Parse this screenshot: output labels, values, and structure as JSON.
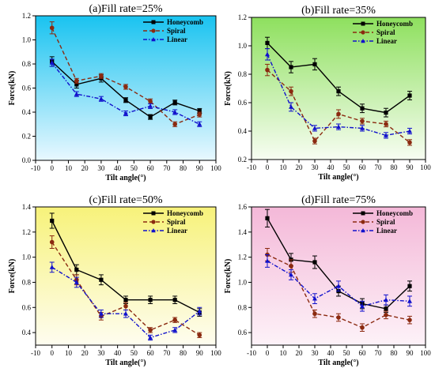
{
  "chart_data": [
    {
      "type": "line",
      "title": "(a)Fill rate=25%",
      "xlabel": "Tilt angle(°)",
      "ylabel": "Force(kN)",
      "xlim": [
        -10,
        100
      ],
      "ylim": [
        0.0,
        1.2
      ],
      "xticks": [
        -10,
        0,
        10,
        20,
        30,
        40,
        50,
        60,
        70,
        80,
        90,
        100
      ],
      "yticks": [
        "0.0",
        "0.2",
        "0.4",
        "0.6",
        "0.8",
        "1.0",
        "1.2"
      ],
      "background": [
        "#19c3f0",
        "#e8f8ff"
      ],
      "legend_position": "top-right",
      "x": [
        0,
        15,
        30,
        45,
        60,
        75,
        90
      ],
      "series": [
        {
          "name": "Honeycomb",
          "color": "#000000",
          "marker": "square",
          "dash": "solid",
          "values": [
            0.82,
            0.63,
            0.68,
            0.5,
            0.36,
            0.48,
            0.41
          ],
          "errors": [
            0.04,
            0.03,
            0.03,
            0.02,
            0.02,
            0.02,
            0.02
          ]
        },
        {
          "name": "Spiral",
          "color": "#8b2a10",
          "marker": "circle",
          "dash": "dash",
          "values": [
            1.1,
            0.66,
            0.7,
            0.61,
            0.49,
            0.3,
            0.38
          ],
          "errors": [
            0.05,
            0.02,
            0.02,
            0.02,
            0.02,
            0.02,
            0.02
          ]
        },
        {
          "name": "Linear",
          "color": "#1111cc",
          "marker": "triangle",
          "dash": "dashdot",
          "values": [
            0.81,
            0.55,
            0.51,
            0.39,
            0.45,
            0.4,
            0.3
          ],
          "errors": [
            0.03,
            0.02,
            0.02,
            0.02,
            0.02,
            0.02,
            0.02
          ]
        }
      ]
    },
    {
      "type": "line",
      "title": "(b)Fill rate=35%",
      "xlabel": "Tilt angle(°)",
      "ylabel": "Force(kN)",
      "xlim": [
        -10,
        100
      ],
      "ylim": [
        0.2,
        1.2
      ],
      "xticks": [
        -10,
        0,
        10,
        20,
        30,
        40,
        50,
        60,
        70,
        80,
        90,
        100
      ],
      "yticks": [
        "0.2",
        "0.4",
        "0.6",
        "0.8",
        "1.0",
        "1.2"
      ],
      "background": [
        "#8ee05e",
        "#f7fdf2"
      ],
      "legend_position": "top-right",
      "x": [
        0,
        15,
        30,
        45,
        60,
        75,
        90
      ],
      "series": [
        {
          "name": "Honeycomb",
          "color": "#000000",
          "marker": "square",
          "dash": "solid",
          "values": [
            1.02,
            0.85,
            0.87,
            0.68,
            0.56,
            0.53,
            0.65
          ],
          "errors": [
            0.04,
            0.04,
            0.04,
            0.03,
            0.03,
            0.03,
            0.03
          ]
        },
        {
          "name": "Spiral",
          "color": "#8b2a10",
          "marker": "circle",
          "dash": "dash",
          "values": [
            0.83,
            0.68,
            0.33,
            0.52,
            0.47,
            0.45,
            0.32
          ],
          "errors": [
            0.04,
            0.03,
            0.02,
            0.03,
            0.02,
            0.02,
            0.02
          ]
        },
        {
          "name": "Linear",
          "color": "#1111cc",
          "marker": "triangle",
          "dash": "dashdot",
          "values": [
            0.94,
            0.57,
            0.42,
            0.43,
            0.42,
            0.37,
            0.4
          ],
          "errors": [
            0.04,
            0.03,
            0.02,
            0.02,
            0.02,
            0.02,
            0.02
          ]
        }
      ]
    },
    {
      "type": "line",
      "title": "(c)Fill rate=50%",
      "xlabel": "Tilt angle(°)",
      "ylabel": "Force(kN)",
      "xlim": [
        -10,
        100
      ],
      "ylim": [
        0.3,
        1.4
      ],
      "xticks": [
        -10,
        0,
        10,
        20,
        30,
        40,
        50,
        60,
        70,
        80,
        90,
        100
      ],
      "yticks": [
        "0.4",
        "0.6",
        "0.8",
        "1.0",
        "1.2",
        "1.4"
      ],
      "background": [
        "#f7f27a",
        "#fefdf0"
      ],
      "legend_position": "top-right",
      "x": [
        0,
        15,
        30,
        45,
        60,
        75,
        90
      ],
      "series": [
        {
          "name": "Honeycomb",
          "color": "#000000",
          "marker": "square",
          "dash": "solid",
          "values": [
            1.29,
            0.9,
            0.82,
            0.66,
            0.66,
            0.66,
            0.56
          ],
          "errors": [
            0.06,
            0.04,
            0.04,
            0.03,
            0.03,
            0.03,
            0.03
          ]
        },
        {
          "name": "Spiral",
          "color": "#8b2a10",
          "marker": "circle",
          "dash": "dash",
          "values": [
            1.12,
            0.82,
            0.53,
            0.61,
            0.42,
            0.5,
            0.38
          ],
          "errors": [
            0.05,
            0.04,
            0.03,
            0.03,
            0.02,
            0.02,
            0.02
          ]
        },
        {
          "name": "Linear",
          "color": "#1111cc",
          "marker": "triangle",
          "dash": "dashdot",
          "values": [
            0.92,
            0.8,
            0.55,
            0.55,
            0.36,
            0.42,
            0.57
          ],
          "errors": [
            0.04,
            0.04,
            0.03,
            0.03,
            0.02,
            0.02,
            0.03
          ]
        }
      ]
    },
    {
      "type": "line",
      "title": "(d)Fill rate=75%",
      "xlabel": "Tilt angle(°)",
      "ylabel": "Force(kN)",
      "xlim": [
        -10,
        100
      ],
      "ylim": [
        0.5,
        1.6
      ],
      "xticks": [
        -10,
        0,
        10,
        20,
        30,
        40,
        50,
        60,
        70,
        80,
        90,
        100
      ],
      "yticks": [
        "0.6",
        "0.8",
        "1.0",
        "1.2",
        "1.4",
        "1.6"
      ],
      "background": [
        "#f4b8d8",
        "#fdf2f8"
      ],
      "legend_position": "top-right",
      "x": [
        0,
        15,
        30,
        45,
        60,
        75,
        90
      ],
      "series": [
        {
          "name": "Honeycomb",
          "color": "#000000",
          "marker": "square",
          "dash": "solid",
          "values": [
            1.51,
            1.18,
            1.16,
            0.93,
            0.83,
            0.79,
            0.97
          ],
          "errors": [
            0.07,
            0.05,
            0.05,
            0.04,
            0.04,
            0.03,
            0.04
          ]
        },
        {
          "name": "Spiral",
          "color": "#8b2a10",
          "marker": "circle",
          "dash": "dash",
          "values": [
            1.22,
            1.13,
            0.75,
            0.72,
            0.64,
            0.74,
            0.7
          ],
          "errors": [
            0.05,
            0.05,
            0.03,
            0.03,
            0.03,
            0.03,
            0.03
          ]
        },
        {
          "name": "Linear",
          "color": "#1111cc",
          "marker": "triangle",
          "dash": "dashdot",
          "values": [
            1.17,
            1.06,
            0.87,
            0.97,
            0.81,
            0.86,
            0.85
          ],
          "errors": [
            0.05,
            0.04,
            0.04,
            0.04,
            0.04,
            0.04,
            0.04
          ]
        }
      ]
    }
  ]
}
